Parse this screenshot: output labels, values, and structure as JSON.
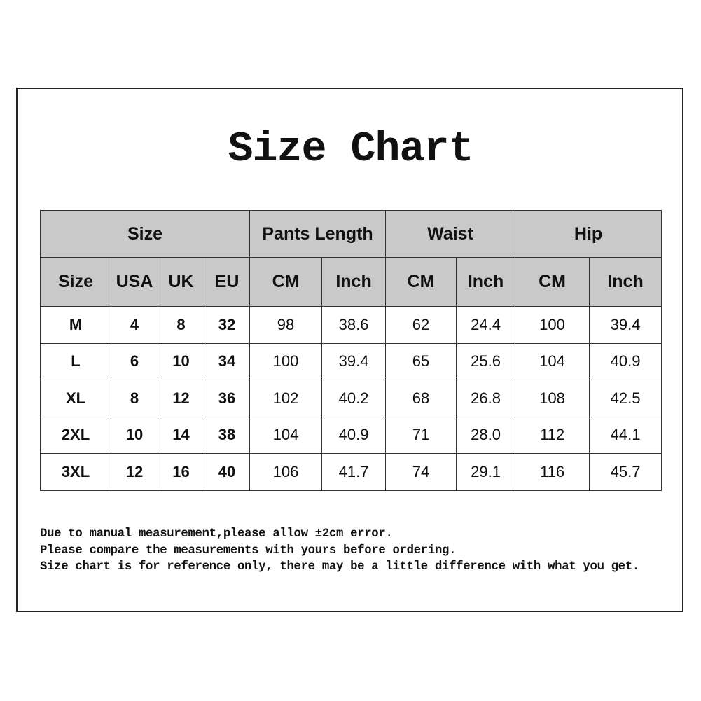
{
  "title": "Size Chart",
  "groups": [
    "Size",
    "Pants Length",
    "Waist",
    "Hip"
  ],
  "subheaders": [
    "Size",
    "USA",
    "UK",
    "EU",
    "CM",
    "Inch",
    "CM",
    "Inch",
    "CM",
    "Inch"
  ],
  "rows": [
    [
      "M",
      "4",
      "8",
      "32",
      "98",
      "38.6",
      "62",
      "24.4",
      "100",
      "39.4"
    ],
    [
      "L",
      "6",
      "10",
      "34",
      "100",
      "39.4",
      "65",
      "25.6",
      "104",
      "40.9"
    ],
    [
      "XL",
      "8",
      "12",
      "36",
      "102",
      "40.2",
      "68",
      "26.8",
      "108",
      "42.5"
    ],
    [
      "2XL",
      "10",
      "14",
      "38",
      "104",
      "40.9",
      "71",
      "28.0",
      "112",
      "44.1"
    ],
    [
      "3XL",
      "12",
      "16",
      "40",
      "106",
      "41.7",
      "74",
      "29.1",
      "116",
      "45.7"
    ]
  ],
  "notes": [
    "Due to manual measurement,please allow ±2cm error.",
    "Please compare the measurements with yours before ordering.",
    "Size chart is for reference only, there may be a little difference with what you get."
  ],
  "colors": {
    "header_bg": "#c9c9c9",
    "border": "#333333"
  }
}
